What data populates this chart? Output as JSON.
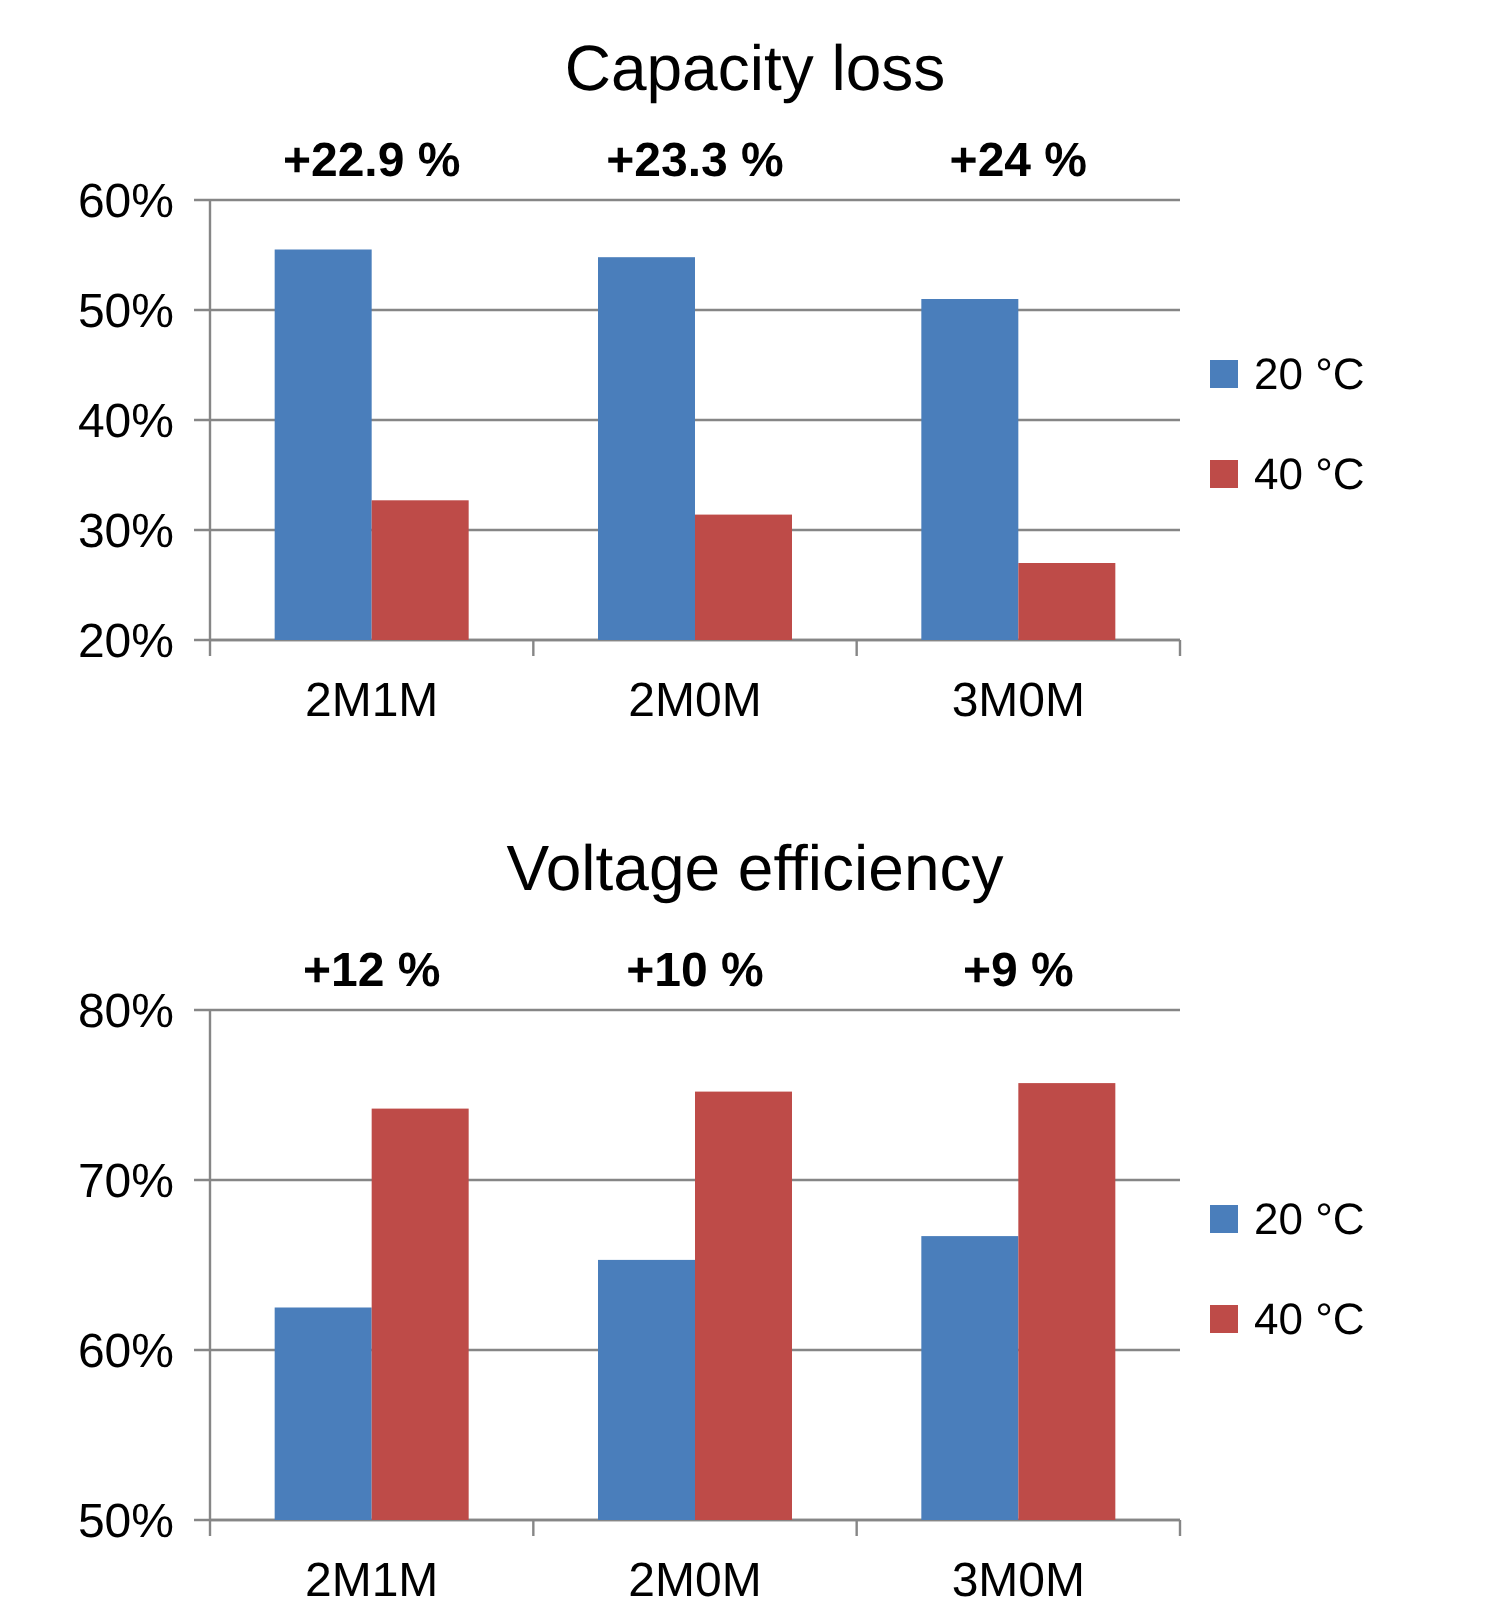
{
  "chart_data": [
    {
      "type": "bar",
      "title": "Capacity loss",
      "categories": [
        "2M1M",
        "2M0M",
        "3M0M"
      ],
      "series": [
        {
          "name": "20 °C",
          "color": "#4a7ebb",
          "values": [
            55.5,
            54.8,
            51.0
          ]
        },
        {
          "name": "40 °C",
          "color": "#be4b48",
          "values": [
            32.7,
            31.4,
            27.0
          ]
        }
      ],
      "ylim": [
        20,
        60
      ],
      "yticks": [
        {
          "value": 20,
          "label": "20%"
        },
        {
          "value": 30,
          "label": "30%"
        },
        {
          "value": 40,
          "label": "40%"
        },
        {
          "value": 50,
          "label": "50%"
        },
        {
          "value": 60,
          "label": "60%"
        }
      ],
      "grid": "y",
      "legend": "right",
      "annotations": [
        "+22.9 %",
        "+23.3 %",
        "+24 %"
      ]
    },
    {
      "type": "bar",
      "title": "Voltage efficiency",
      "categories": [
        "2M1M",
        "2M0M",
        "3M0M"
      ],
      "series": [
        {
          "name": "20 °C",
          "color": "#4a7ebb",
          "values": [
            62.5,
            65.3,
            66.7
          ]
        },
        {
          "name": "40 °C",
          "color": "#be4b48",
          "values": [
            74.2,
            75.2,
            75.7
          ]
        }
      ],
      "ylim": [
        50,
        80
      ],
      "yticks": [
        {
          "value": 50,
          "label": "50%"
        },
        {
          "value": 60,
          "label": "60%"
        },
        {
          "value": 70,
          "label": "70%"
        },
        {
          "value": 80,
          "label": "80%"
        }
      ],
      "grid": "y",
      "legend": "right",
      "annotations": [
        "+12 %",
        "+10 %",
        "+9 %"
      ]
    }
  ]
}
